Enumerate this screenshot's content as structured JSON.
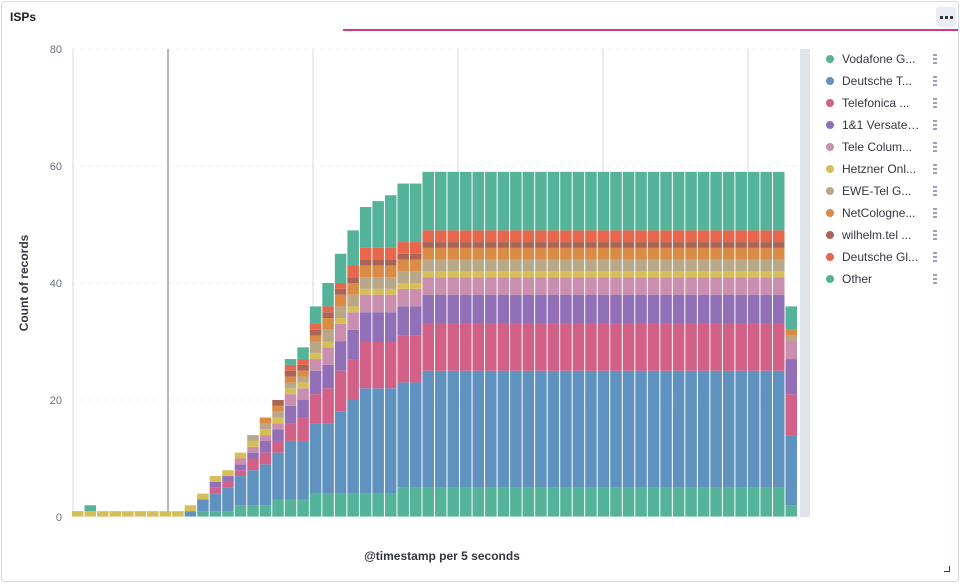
{
  "panel": {
    "title": "ISPs"
  },
  "chart_data": {
    "type": "bar",
    "stacked": true,
    "title": "ISPs",
    "xlabel": "@timestamp per 5 seconds",
    "ylabel": "Count of records",
    "ylim": [
      0,
      80
    ],
    "yticks": [
      0,
      20,
      40,
      60,
      80
    ],
    "bins": 58,
    "series": [
      {
        "name": "Vodafone G...",
        "color": "#54b399",
        "values": [
          0,
          0,
          0,
          0,
          0,
          0,
          0,
          0,
          0,
          0,
          1,
          1,
          1,
          2,
          2,
          2,
          3,
          3,
          3,
          4,
          4,
          4,
          4,
          4,
          4,
          4,
          5,
          5,
          5,
          5,
          5,
          5,
          5,
          5,
          5,
          5,
          5,
          5,
          5,
          5,
          5,
          5,
          5,
          5,
          5,
          5,
          5,
          5,
          5,
          5,
          5,
          5,
          5,
          5,
          5,
          5,
          5,
          2
        ]
      },
      {
        "name": "Deutsche T...",
        "color": "#6092c0",
        "values": [
          0,
          0,
          0,
          0,
          0,
          0,
          0,
          0,
          0,
          1,
          2,
          3,
          4,
          5,
          6,
          7,
          8,
          10,
          10,
          12,
          12,
          14,
          16,
          18,
          18,
          18,
          18,
          18,
          20,
          20,
          20,
          20,
          20,
          20,
          20,
          20,
          20,
          20,
          20,
          20,
          20,
          20,
          20,
          20,
          20,
          20,
          20,
          20,
          20,
          20,
          20,
          20,
          20,
          20,
          20,
          20,
          20,
          12
        ]
      },
      {
        "name": "Telefonica ...",
        "color": "#d36086",
        "values": [
          0,
          0,
          0,
          0,
          0,
          0,
          0,
          0,
          0,
          0,
          0,
          1,
          1,
          1,
          2,
          2,
          2,
          3,
          4,
          5,
          6,
          7,
          7,
          8,
          8,
          8,
          8,
          8,
          8,
          8,
          8,
          8,
          8,
          8,
          8,
          8,
          8,
          8,
          8,
          8,
          8,
          8,
          8,
          8,
          8,
          8,
          8,
          8,
          8,
          8,
          8,
          8,
          8,
          8,
          8,
          8,
          8,
          7
        ]
      },
      {
        "name": "1&1 Versatel...",
        "color": "#9170b8",
        "values": [
          0,
          0,
          0,
          0,
          0,
          0,
          0,
          0,
          0,
          0,
          0,
          1,
          1,
          1,
          1,
          2,
          2,
          3,
          3,
          4,
          4,
          5,
          5,
          5,
          5,
          5,
          5,
          5,
          5,
          5,
          5,
          5,
          5,
          5,
          5,
          5,
          5,
          5,
          5,
          5,
          5,
          5,
          5,
          5,
          5,
          5,
          5,
          5,
          5,
          5,
          5,
          5,
          5,
          5,
          5,
          5,
          5,
          6
        ]
      },
      {
        "name": "Tele Colum...",
        "color": "#ca8eae",
        "values": [
          0,
          0,
          0,
          0,
          0,
          0,
          0,
          0,
          0,
          0,
          0,
          0,
          0,
          1,
          1,
          1,
          1,
          2,
          2,
          2,
          3,
          3,
          3,
          3,
          3,
          3,
          3,
          3,
          3,
          3,
          3,
          3,
          3,
          3,
          3,
          3,
          3,
          3,
          3,
          3,
          3,
          3,
          3,
          3,
          3,
          3,
          3,
          3,
          3,
          3,
          3,
          3,
          3,
          3,
          3,
          3,
          3,
          3
        ]
      },
      {
        "name": "Hetzner Onl...",
        "color": "#d6bf57",
        "values": [
          1,
          1,
          1,
          1,
          1,
          1,
          1,
          1,
          1,
          1,
          1,
          1,
          1,
          1,
          1,
          1,
          1,
          1,
          1,
          1,
          1,
          1,
          1,
          1,
          1,
          1,
          1,
          1,
          1,
          1,
          1,
          1,
          1,
          1,
          1,
          1,
          1,
          1,
          1,
          1,
          1,
          1,
          1,
          1,
          1,
          1,
          1,
          1,
          1,
          1,
          1,
          1,
          1,
          1,
          1,
          1,
          1,
          0
        ]
      },
      {
        "name": "EWE-Tel G...",
        "color": "#b9a888",
        "values": [
          0,
          0,
          0,
          0,
          0,
          0,
          0,
          0,
          0,
          0,
          0,
          0,
          0,
          0,
          1,
          1,
          1,
          1,
          1,
          2,
          2,
          2,
          2,
          2,
          2,
          2,
          2,
          2,
          2,
          2,
          2,
          2,
          2,
          2,
          2,
          2,
          2,
          2,
          2,
          2,
          2,
          2,
          2,
          2,
          2,
          2,
          2,
          2,
          2,
          2,
          2,
          2,
          2,
          2,
          2,
          2,
          2,
          1
        ]
      },
      {
        "name": "NetCologne...",
        "color": "#da8b45",
        "values": [
          0,
          0,
          0,
          0,
          0,
          0,
          0,
          0,
          0,
          0,
          0,
          0,
          0,
          0,
          0,
          1,
          1,
          1,
          1,
          1,
          2,
          2,
          2,
          2,
          2,
          2,
          2,
          2,
          2,
          2,
          2,
          2,
          2,
          2,
          2,
          2,
          2,
          2,
          2,
          2,
          2,
          2,
          2,
          2,
          2,
          2,
          2,
          2,
          2,
          2,
          2,
          2,
          2,
          2,
          2,
          2,
          2,
          1
        ]
      },
      {
        "name": "wilhelm.tel ...",
        "color": "#aa6556",
        "values": [
          0,
          0,
          0,
          0,
          0,
          0,
          0,
          0,
          0,
          0,
          0,
          0,
          0,
          0,
          0,
          0,
          1,
          1,
          1,
          1,
          1,
          1,
          1,
          1,
          1,
          1,
          1,
          1,
          1,
          1,
          1,
          1,
          1,
          1,
          1,
          1,
          1,
          1,
          1,
          1,
          1,
          1,
          1,
          1,
          1,
          1,
          1,
          1,
          1,
          1,
          1,
          1,
          1,
          1,
          1,
          1,
          1,
          0
        ]
      },
      {
        "name": "Deutsche Gl...",
        "color": "#e7664c",
        "values": [
          0,
          0,
          0,
          0,
          0,
          0,
          0,
          0,
          0,
          0,
          0,
          0,
          0,
          0,
          0,
          0,
          0,
          1,
          1,
          1,
          1,
          1,
          2,
          2,
          2,
          2,
          2,
          2,
          2,
          2,
          2,
          2,
          2,
          2,
          2,
          2,
          2,
          2,
          2,
          2,
          2,
          2,
          2,
          2,
          2,
          2,
          2,
          2,
          2,
          2,
          2,
          2,
          2,
          2,
          2,
          2,
          2,
          0
        ]
      },
      {
        "name": "Other",
        "color": "#54b399",
        "values": [
          0,
          1,
          0,
          0,
          0,
          0,
          0,
          0,
          0,
          0,
          0,
          0,
          0,
          0,
          0,
          0,
          0,
          1,
          2,
          3,
          4,
          5,
          6,
          7,
          8,
          9,
          10,
          10,
          10,
          10,
          10,
          10,
          10,
          10,
          10,
          10,
          10,
          10,
          10,
          10,
          10,
          10,
          10,
          10,
          10,
          10,
          10,
          10,
          10,
          10,
          10,
          10,
          10,
          10,
          10,
          10,
          10,
          4
        ]
      }
    ]
  }
}
